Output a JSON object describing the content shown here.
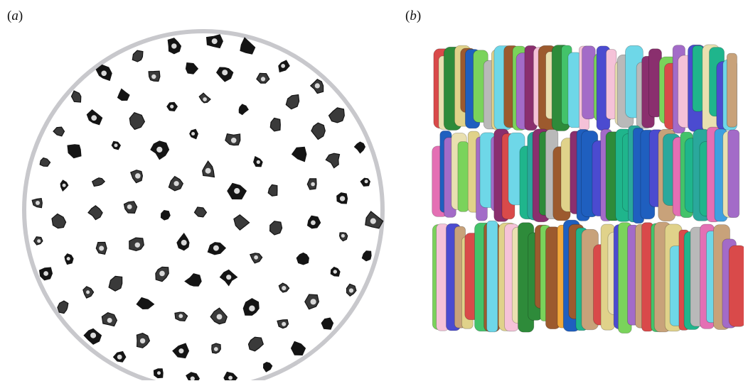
{
  "figure": {
    "panel_a": {
      "label_open": "(",
      "label_letter": "a",
      "label_close": ")",
      "description": "",
      "colors": {
        "rim": "#c8c8cc",
        "particle": "#141414",
        "background": "#ffffff"
      }
    },
    "panel_b": {
      "label_open": "(",
      "label_letter": "b",
      "label_close": ")",
      "layers": 3,
      "palette": [
        "#1f5fbf",
        "#2e8b3a",
        "#e0d28a",
        "#e46fb4",
        "#6ed7e8",
        "#8a2f6e",
        "#c8a27a",
        "#43c36a",
        "#4b4bd0",
        "#b9b9b9",
        "#f2a93b",
        "#7ad35b",
        "#2aa89c",
        "#e9e0b0",
        "#a36bc8",
        "#d94a4a",
        "#3fa0e0",
        "#9c5a2e",
        "#f5c2d8",
        "#1fb58c"
      ]
    }
  }
}
